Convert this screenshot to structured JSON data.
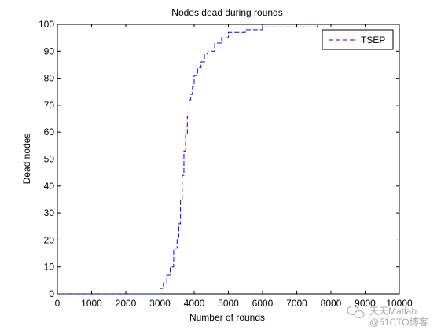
{
  "chart_data": {
    "type": "line",
    "title": "Nodes dead during rounds",
    "xlabel": "Number of rounds",
    "ylabel": "Dead nodes",
    "xlim": [
      0,
      10000
    ],
    "ylim": [
      0,
      100
    ],
    "xticks": [
      0,
      1000,
      2000,
      3000,
      4000,
      5000,
      6000,
      7000,
      8000,
      9000,
      10000
    ],
    "yticks": [
      0,
      10,
      20,
      30,
      40,
      50,
      60,
      70,
      80,
      90,
      100
    ],
    "grid": false,
    "legend_position": "top-right",
    "series": [
      {
        "name": "TSEP",
        "color": "#0000ff",
        "line_style": "dashed",
        "x": [
          0,
          2950,
          3000,
          3100,
          3200,
          3300,
          3400,
          3500,
          3550,
          3600,
          3650,
          3700,
          3750,
          3800,
          3850,
          3900,
          3950,
          4000,
          4100,
          4200,
          4300,
          4400,
          4600,
          4800,
          5000,
          5500,
          6000,
          7000,
          7500,
          7600
        ],
        "y": [
          0,
          0,
          2,
          4,
          7,
          10,
          17,
          21,
          26,
          35,
          44,
          53,
          59,
          66,
          72,
          74,
          77,
          81,
          84,
          86,
          89,
          90,
          93,
          95,
          97,
          98,
          99,
          99,
          99,
          100
        ]
      }
    ]
  },
  "watermark": {
    "icon": "chat-bubble-icon",
    "line1": "天天Matlab",
    "line2": "@51CTO博客"
  }
}
